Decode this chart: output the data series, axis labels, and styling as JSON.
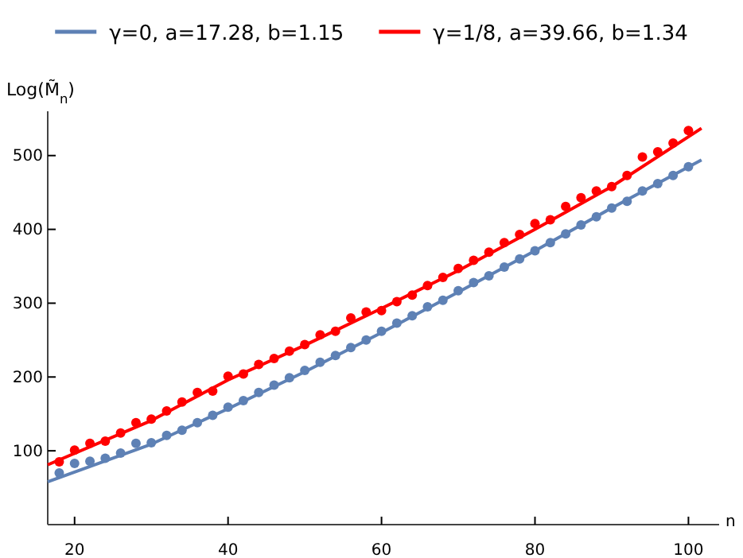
{
  "chart_data": {
    "type": "scatter",
    "xlabel": "n",
    "ylabel": "Log(M̃$_{n}$)",
    "xlim": [
      16.5,
      104
    ],
    "ylim": [
      0,
      560
    ],
    "xticks": [
      20,
      40,
      60,
      80,
      100
    ],
    "yticks": [
      100,
      200,
      300,
      400,
      500
    ],
    "grid": false,
    "legend": "top",
    "series": [
      {
        "type": "line",
        "name": "γ=0, a=17.28, b=1.15",
        "color": "#5e81b5",
        "marker": "none",
        "line_style": "solid",
        "x": [
          16.5,
          30,
          40,
          50,
          60,
          70,
          80,
          90,
          101.7
        ],
        "values": [
          58,
          109,
          157,
          207,
          260,
          315,
          371,
          429,
          494
        ]
      },
      {
        "type": "line",
        "name": "γ=1/8, a=39.66, b=1.34",
        "color": "#ff0000",
        "marker": "none",
        "line_style": "solid",
        "x": [
          16.5,
          30,
          40,
          50,
          60,
          70,
          80,
          90,
          101.7
        ],
        "values": [
          81,
          141,
          196,
          243,
          293,
          344,
          400,
          458,
          537
        ]
      },
      {
        "type": "scatter",
        "color": "#5e81b5",
        "marker": "circle",
        "x": [
          18,
          20,
          22,
          24,
          26,
          28,
          30,
          32,
          34,
          36,
          38,
          40,
          42,
          44,
          46,
          48,
          50,
          52,
          54,
          56,
          58,
          60,
          62,
          64,
          66,
          68,
          70,
          72,
          74,
          76,
          78,
          80,
          82,
          84,
          86,
          88,
          90,
          92,
          94,
          96,
          98,
          100
        ],
        "values": [
          70,
          83,
          86,
          90,
          97,
          110,
          111,
          121,
          128,
          138,
          148,
          159,
          168,
          179,
          189,
          199,
          209,
          220,
          229,
          240,
          250,
          262,
          273,
          283,
          295,
          304,
          317,
          328,
          337,
          349,
          360,
          371,
          382,
          394,
          406,
          417,
          429,
          438,
          452,
          462,
          473,
          485
        ]
      },
      {
        "type": "scatter",
        "color": "#ff0000",
        "marker": "circle",
        "x": [
          18,
          20,
          22,
          24,
          26,
          28,
          30,
          32,
          34,
          36,
          38,
          40,
          42,
          44,
          46,
          48,
          50,
          52,
          54,
          56,
          58,
          60,
          62,
          64,
          66,
          68,
          70,
          72,
          74,
          76,
          78,
          80,
          82,
          84,
          86,
          88,
          90,
          92,
          94,
          96,
          98,
          100
        ],
        "values": [
          85,
          101,
          110,
          113,
          124,
          138,
          143,
          154,
          166,
          179,
          181,
          201,
          204,
          217,
          225,
          235,
          244,
          257,
          262,
          280,
          288,
          290,
          302,
          311,
          324,
          335,
          347,
          358,
          369,
          382,
          393,
          408,
          413,
          431,
          443,
          452,
          458,
          473,
          498,
          505,
          517,
          534
        ]
      }
    ]
  }
}
